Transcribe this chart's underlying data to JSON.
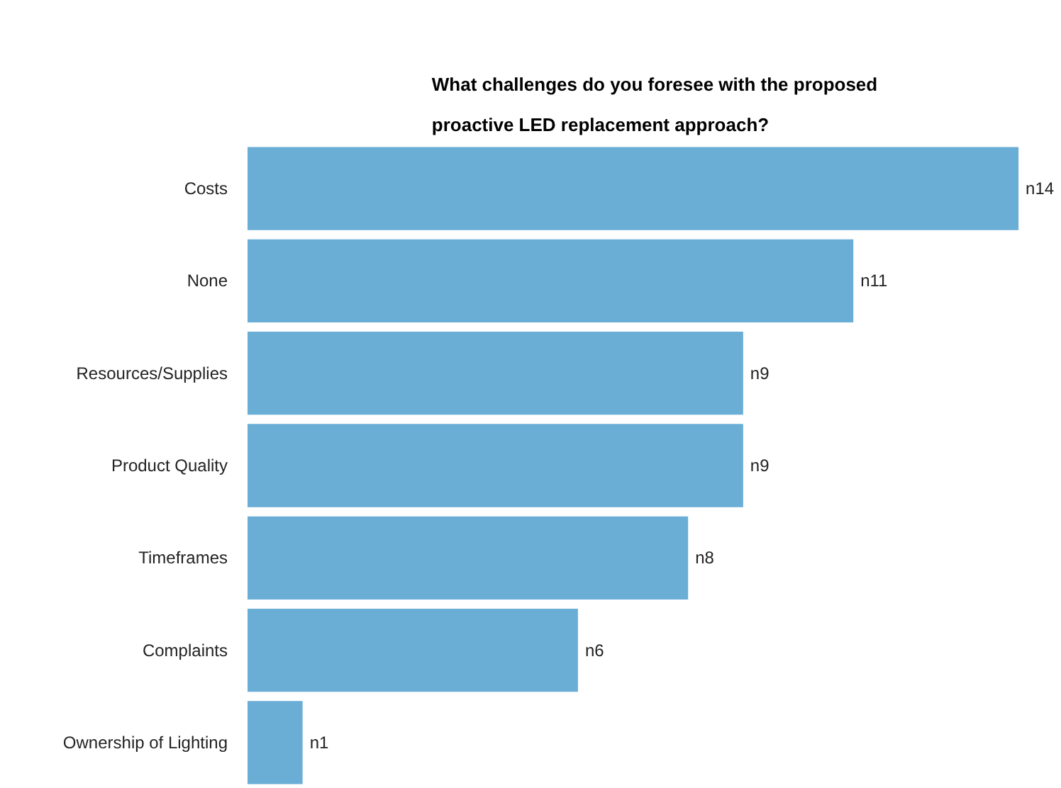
{
  "chart_data": {
    "type": "bar",
    "orientation": "horizontal",
    "title": "What challenges do you foresee with the proposed proactive LED replacement approach?",
    "categories": [
      "Costs",
      "None",
      "Resources/Supplies",
      "Product Quality",
      "Timeframes",
      "Complaints",
      "Ownership of Lighting"
    ],
    "values": [
      14,
      11,
      9,
      9,
      8,
      6,
      1
    ],
    "value_labels": [
      "n14",
      "n11",
      "n9",
      "n9",
      "n8",
      "n6",
      "n1"
    ],
    "color": "#6aaed6",
    "grid": false,
    "tick_labels": "y"
  }
}
